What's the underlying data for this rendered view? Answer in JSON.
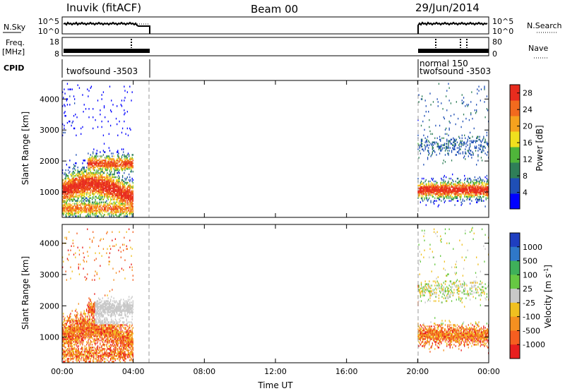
{
  "header": {
    "station": "Inuvik (fitACF)",
    "beam": "Beam 00",
    "date": "29/Jun/2014"
  },
  "summary": {
    "nsky_label": "N.Sky",
    "nsky_ticks": [
      "10^5",
      "10^0"
    ],
    "nsearch_label": "N.Search",
    "freq_label": "Freq.",
    "freq_unit": "[MHz]",
    "freq_ticks": [
      "18",
      "8"
    ],
    "nave_label": "Nave",
    "nave_ticks": [
      "80",
      "0"
    ],
    "cpid_label": "CPID",
    "cpid_left": "twofsound -3503",
    "cpid_right_1": "normal 150",
    "cpid_right_2": "twofsound -3503"
  },
  "colors": {
    "power_scale": [
      "#0000ff",
      "#1f4fb5",
      "#2f7f58",
      "#4fb53a",
      "#f0e01e",
      "#f6a21e",
      "#f26a1e",
      "#e82c1e"
    ],
    "velocity_scale": [
      "#1f3fc0",
      "#2f78c8",
      "#3fb05a",
      "#67c843",
      "#c8c8c8",
      "#f0c020",
      "#f59020",
      "#f55e20",
      "#e81e1e"
    ]
  },
  "chart_data": [
    {
      "type": "heatmap",
      "title": "Power",
      "xlabel": "Time UT",
      "ylabel": "Slant Range [km]",
      "x_ticks": [
        "00:00",
        "04:00",
        "08:00",
        "12:00",
        "16:00",
        "20:00",
        "00:00"
      ],
      "y_ticks": [
        1000,
        2000,
        3000,
        4000
      ],
      "ylim": [
        180,
        4600
      ],
      "xlim_hours": [
        0,
        24
      ],
      "data_intervals_hours": [
        [
          0,
          4.8
        ],
        [
          20,
          24
        ]
      ],
      "colorbar_label": "Power [dB]",
      "colorbar_ticks": [
        4,
        8,
        12,
        16,
        20,
        24,
        28
      ],
      "colorbar_range": [
        0,
        30
      ]
    },
    {
      "type": "heatmap",
      "title": "Velocity",
      "xlabel": "Time UT",
      "ylabel": "Slant Range [km]",
      "x_ticks": [
        "00:00",
        "04:00",
        "08:00",
        "12:00",
        "16:00",
        "20:00",
        "00:00"
      ],
      "y_ticks": [
        1000,
        2000,
        3000,
        4000
      ],
      "ylim": [
        180,
        4600
      ],
      "xlim_hours": [
        0,
        24
      ],
      "colorbar_label": "Velocity [m s^-1]",
      "colorbar_ticks": [
        "1000",
        "500",
        "100",
        "25",
        "-25",
        "-100",
        "-500",
        "-1000"
      ]
    }
  ]
}
